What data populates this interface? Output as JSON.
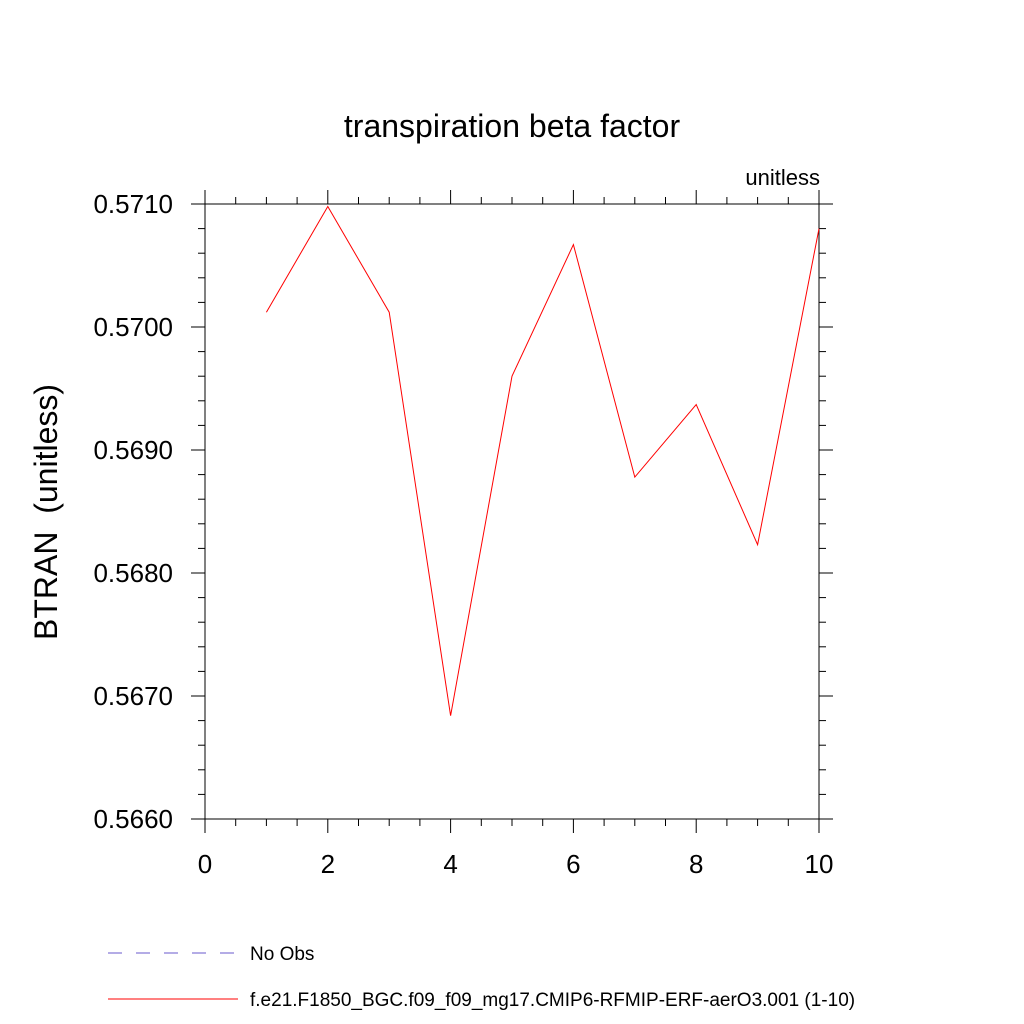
{
  "chart_data": {
    "type": "line",
    "title": "transpiration beta factor",
    "subtitle": "unitless",
    "ylabel": "BTRAN  (unitless)",
    "xlabel": "",
    "xlim": [
      0,
      10
    ],
    "ylim": [
      0.566,
      0.571
    ],
    "x_ticks": [
      0,
      2,
      4,
      6,
      8,
      10
    ],
    "x_tick_labels": [
      "0",
      "2",
      "4",
      "6",
      "8",
      "10"
    ],
    "y_ticks": [
      0.566,
      0.567,
      0.568,
      0.569,
      0.57,
      0.571
    ],
    "y_tick_labels": [
      "0.5660",
      "0.5670",
      "0.5680",
      "0.5690",
      "0.5700",
      "0.5710"
    ],
    "grid": false,
    "legend_position": "bottom",
    "series": [
      {
        "name": "f.e21.F1850_BGC.f09_f09_mg17.CMIP6-RFMIP-ERF-aerO3.001 (1-10)",
        "color": "#ff0000",
        "style": "solid",
        "x": [
          1,
          2,
          3,
          4,
          5,
          6,
          7,
          8,
          9,
          10
        ],
        "values": [
          0.57012,
          0.57098,
          0.57012,
          0.56684,
          0.5696,
          0.57067,
          0.56878,
          0.56937,
          0.56823,
          0.5708
        ]
      }
    ],
    "legend": [
      {
        "label": "No Obs",
        "color": "#6a5acd",
        "style": "dashed"
      },
      {
        "label": "f.e21.F1850_BGC.f09_f09_mg17.CMIP6-RFMIP-ERF-aerO3.001 (1-10)",
        "color": "#ff0000",
        "style": "solid"
      }
    ]
  }
}
